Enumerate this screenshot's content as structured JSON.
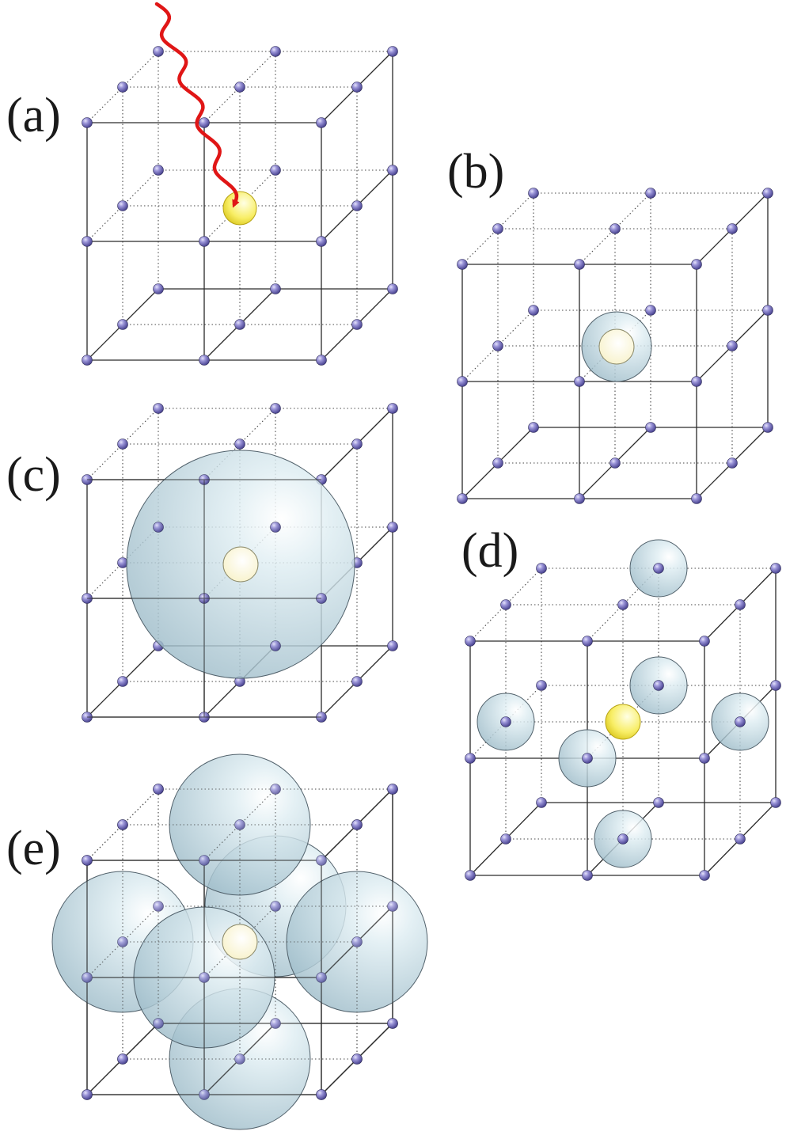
{
  "panels": [
    {
      "id": "a",
      "label": "(a)"
    },
    {
      "id": "b",
      "label": "(b)"
    },
    {
      "id": "c",
      "label": "(c)"
    },
    {
      "id": "d",
      "label": "(d)"
    },
    {
      "id": "e",
      "label": "(e)"
    }
  ],
  "colors": {
    "lattice_atom": "#7a73c4",
    "impurity_yellow": "#f5e83c",
    "impurity_pale": "#fffbe0",
    "sphere_fill": "#c6dde6",
    "photon": "#e01616",
    "lattice_line": "#2a2a2a"
  }
}
